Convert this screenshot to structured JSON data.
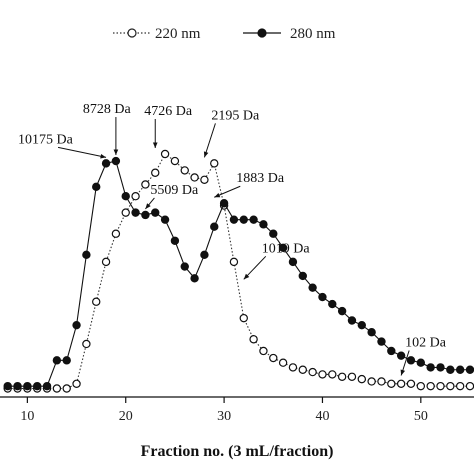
{
  "chart_data": {
    "type": "line",
    "xlabel": "Fraction no. (3 mL/fraction)",
    "ylabel": "",
    "xlim": [
      8,
      55
    ],
    "ylim": [
      0,
      1
    ],
    "x_ticks": [
      10,
      20,
      30,
      40,
      50
    ],
    "grid": false,
    "legend_position": "top",
    "series": [
      {
        "name": "220 nm",
        "marker": "open-circle",
        "line_style": "dotted",
        "x": [
          8,
          9,
          10,
          11,
          12,
          13,
          14,
          15,
          16,
          17,
          18,
          19,
          20,
          21,
          22,
          23,
          24,
          25,
          26,
          27,
          28,
          29,
          30,
          31,
          32,
          33,
          34,
          35,
          36,
          37,
          38,
          39,
          40,
          41,
          42,
          43,
          44,
          45,
          46,
          47,
          48,
          49,
          50,
          51,
          52,
          53,
          54,
          55
        ],
        "y": [
          0.0,
          0.0,
          0.0,
          0.0,
          0.0,
          0.0,
          0.0,
          0.02,
          0.19,
          0.37,
          0.54,
          0.66,
          0.75,
          0.82,
          0.87,
          0.92,
          1.0,
          0.97,
          0.93,
          0.9,
          0.89,
          0.96,
          0.78,
          0.54,
          0.3,
          0.21,
          0.16,
          0.13,
          0.11,
          0.09,
          0.08,
          0.07,
          0.06,
          0.06,
          0.05,
          0.05,
          0.04,
          0.03,
          0.03,
          0.02,
          0.02,
          0.02,
          0.01,
          0.01,
          0.01,
          0.01,
          0.01,
          0.01
        ]
      },
      {
        "name": "280 nm",
        "marker": "filled-circle",
        "line_style": "solid",
        "x": [
          8,
          9,
          10,
          11,
          12,
          13,
          14,
          15,
          16,
          17,
          18,
          19,
          20,
          21,
          22,
          23,
          24,
          25,
          26,
          27,
          28,
          29,
          30,
          31,
          32,
          33,
          34,
          35,
          36,
          37,
          38,
          39,
          40,
          41,
          42,
          43,
          44,
          45,
          46,
          47,
          48,
          49,
          50,
          51,
          52,
          53,
          54,
          55
        ],
        "y": [
          0.01,
          0.01,
          0.01,
          0.01,
          0.01,
          0.12,
          0.12,
          0.27,
          0.57,
          0.86,
          0.96,
          0.97,
          0.82,
          0.75,
          0.74,
          0.75,
          0.72,
          0.63,
          0.52,
          0.47,
          0.57,
          0.69,
          0.79,
          0.72,
          0.72,
          0.72,
          0.7,
          0.66,
          0.6,
          0.54,
          0.48,
          0.43,
          0.39,
          0.36,
          0.33,
          0.29,
          0.27,
          0.24,
          0.2,
          0.16,
          0.14,
          0.12,
          0.11,
          0.09,
          0.09,
          0.08,
          0.08,
          0.08
        ]
      }
    ],
    "annotations": [
      {
        "text": "10175 Da",
        "x": 18,
        "y": 0.96
      },
      {
        "text": "8728 Da",
        "x": 19,
        "y": 0.97
      },
      {
        "text": "4726 Da",
        "x": 23,
        "y": 1.0
      },
      {
        "text": "5509 Da",
        "x": 22,
        "y": 0.74
      },
      {
        "text": "2195 Da",
        "x": 28,
        "y": 0.96
      },
      {
        "text": "1883 Da",
        "x": 29,
        "y": 0.79
      },
      {
        "text": "1019 Da",
        "x": 32,
        "y": 0.44
      },
      {
        "text": "102 Da",
        "x": 48,
        "y": 0.03
      }
    ]
  }
}
